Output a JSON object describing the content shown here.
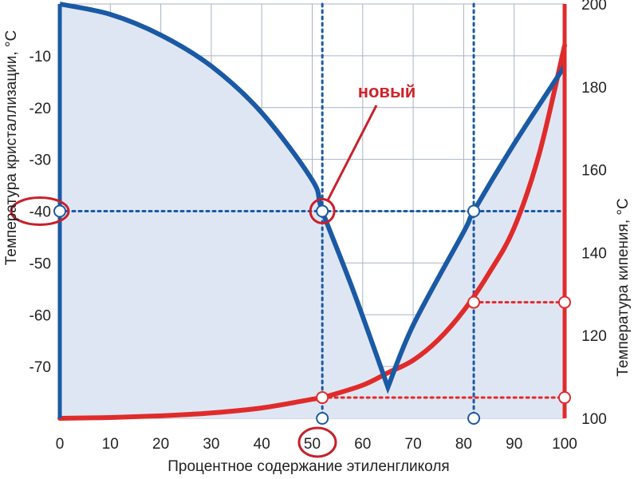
{
  "chart_data": {
    "type": "line",
    "xlabel": "Процентное содержание этиленгликоля",
    "ylabel_left": "Температура кристаллизации, °C",
    "ylabel_right": "Температура кипения, °C",
    "x_ticks": [
      "0",
      "10",
      "20",
      "30",
      "40",
      "50",
      "60",
      "70",
      "80",
      "90",
      "100"
    ],
    "y_left_ticks": [
      "-10",
      "-20",
      "-30",
      "-40",
      "-50",
      "-60",
      "-70"
    ],
    "y_right_ticks": [
      "200",
      "180",
      "160",
      "140",
      "120",
      "100"
    ],
    "xlim": [
      0,
      100
    ],
    "ylim_left": [
      -80,
      0
    ],
    "ylim_right": [
      100,
      200
    ],
    "grid": true,
    "colors": {
      "freezing": "#1a5aa5",
      "boiling": "#e02b2b",
      "fill": "#dfe6f3",
      "grid": "#a9b3c7",
      "marker_ring": "#c8202a"
    },
    "series": [
      {
        "role": "freezing",
        "axis": "left",
        "x": [
          0,
          10,
          20,
          30,
          40,
          50,
          52,
          58,
          65,
          70,
          80,
          82,
          90,
          100
        ],
        "y": [
          0,
          -2,
          -6,
          -12,
          -21,
          -34,
          -40,
          -55,
          -74,
          -62,
          -44,
          -40,
          -27,
          -12
        ]
      },
      {
        "role": "boiling",
        "axis": "right",
        "x": [
          0,
          10,
          20,
          30,
          40,
          50,
          52,
          60,
          65,
          70,
          75,
          80,
          85,
          90,
          95,
          100
        ],
        "y": [
          100,
          100.2,
          100.6,
          101.3,
          102.5,
          104.6,
          105,
          108,
          111,
          114,
          119,
          126,
          135,
          146,
          164,
          190
        ]
      }
    ],
    "annotations": {
      "new_label": "новый",
      "highlighted_x": "50",
      "highlighted_y": "-40"
    }
  }
}
